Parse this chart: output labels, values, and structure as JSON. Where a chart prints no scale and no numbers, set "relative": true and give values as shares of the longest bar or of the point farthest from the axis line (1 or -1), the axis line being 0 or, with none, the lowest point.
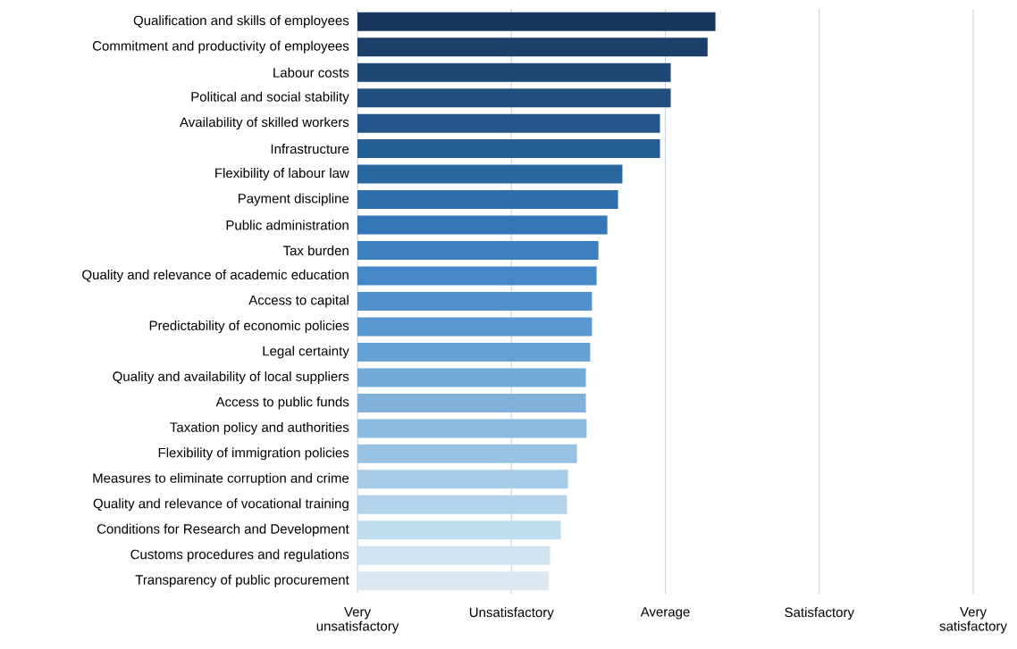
{
  "chart_data": {
    "type": "bar",
    "orientation": "horizontal",
    "relative": true,
    "categories": [
      "Qualification and skills of employees",
      "Commitment and productivity of employees",
      "Labour costs",
      "Political and social stability",
      "Availability of skilled workers",
      "Infrastructure",
      "Flexibility of labour law",
      "Payment discipline",
      "Public administration",
      "Tax burden",
      "Quality and relevance of academic education",
      "Access to capital",
      "Predictability of economic policies",
      "Legal certainty",
      "Quality and availability of local suppliers",
      "Access to public funds",
      "Taxation policy and authorities",
      "Flexibility of immigration policies",
      "Measures to eliminate corruption and crime",
      "Quality and relevance of vocational training",
      "Conditions for Research and Development",
      "Customs procedures and regulations",
      "Transparency of public procurement"
    ],
    "values": [
      1,
      0.978,
      0.875,
      0.875,
      0.845,
      0.845,
      0.74,
      0.728,
      0.698,
      0.673,
      0.668,
      0.655,
      0.655,
      0.65,
      0.638,
      0.638,
      0.64,
      0.613,
      0.588,
      0.585,
      0.568,
      0.538,
      0.535
    ],
    "colors": [
      "#17375e",
      "#1a3f6a",
      "#1d4775",
      "#204f80",
      "#23578b",
      "#265f96",
      "#2a67a1",
      "#2f6fac",
      "#3577b6",
      "#3d80c0",
      "#4688c7",
      "#5190cb",
      "#5b98cf",
      "#67a0d3",
      "#73a9d7",
      "#7fb1db",
      "#8bbadf",
      "#98c2e3",
      "#a5cbe7",
      "#b3d3eb",
      "#c1dcef",
      "#cfe4f3",
      "#dde8f3"
    ],
    "ref_lines": [
      {
        "axis": "x",
        "value": 0,
        "label": "Very unsatisfactory",
        "color": "#d0d4e4"
      },
      {
        "axis": "x",
        "value": 0.43,
        "label": "Unsatisfactory",
        "color": "#d0d4e4"
      },
      {
        "axis": "x",
        "value": 0.86,
        "label": "Average",
        "color": "#d0d4e4"
      },
      {
        "axis": "x",
        "value": 1.29,
        "label": "Satisfactory",
        "color": "#d0d4e4"
      },
      {
        "axis": "x",
        "value": 1.72,
        "label": "Very satisfactory",
        "color": "#d0d4e4"
      }
    ]
  }
}
